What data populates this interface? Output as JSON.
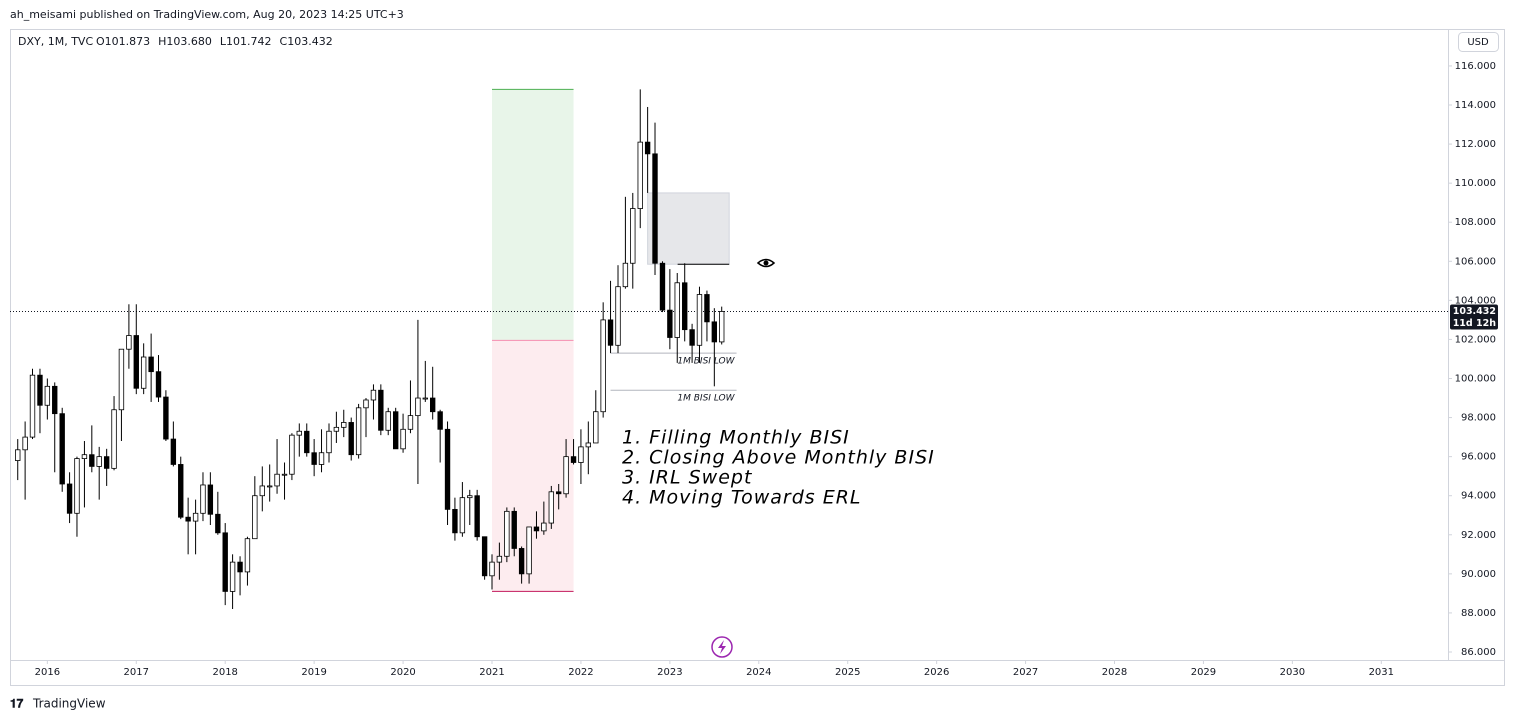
{
  "header": {
    "publisher": "ah_meisami published on TradingView.com, Aug 20, 2023 14:25 UTC+3",
    "footer": "TradingView"
  },
  "chart_data": {
    "type": "candlestick",
    "symbol": "DXY, 1M, TVC",
    "legend_items": [
      "O101.873",
      "H103.680",
      "L101.742",
      "C103.432"
    ],
    "currency": "USD",
    "countdown": "11d 12h",
    "x": [
      2015.667,
      2015.75,
      2015.833,
      2015.917,
      2016,
      2016.083,
      2016.167,
      2016.25,
      2016.333,
      2016.417,
      2016.5,
      2016.583,
      2016.667,
      2016.75,
      2016.833,
      2016.917,
      2017,
      2017.083,
      2017.167,
      2017.25,
      2017.333,
      2017.417,
      2017.5,
      2017.583,
      2017.667,
      2017.75,
      2017.833,
      2017.917,
      2018,
      2018.083,
      2018.167,
      2018.25,
      2018.333,
      2018.417,
      2018.5,
      2018.583,
      2018.667,
      2018.75,
      2018.833,
      2018.917,
      2019,
      2019.083,
      2019.167,
      2019.25,
      2019.333,
      2019.417,
      2019.5,
      2019.583,
      2019.667,
      2019.75,
      2019.833,
      2019.917,
      2020,
      2020.083,
      2020.167,
      2020.25,
      2020.333,
      2020.417,
      2020.5,
      2020.583,
      2020.667,
      2020.75,
      2020.833,
      2020.917,
      2021,
      2021.083,
      2021.167,
      2021.25,
      2021.333,
      2021.417,
      2021.5,
      2021.583,
      2021.667,
      2021.75,
      2021.833,
      2021.917,
      2022,
      2022.083,
      2022.167,
      2022.25,
      2022.333,
      2022.417,
      2022.5,
      2022.583,
      2022.667,
      2022.75,
      2022.833,
      2022.917,
      2023,
      2023.083,
      2023.167,
      2023.25,
      2023.333,
      2023.417,
      2023.5,
      2023.583
    ],
    "open": [
      95.8,
      96.35,
      97.0,
      100.17,
      98.63,
      99.6,
      98.2,
      94.6,
      93.1,
      95.9,
      96.1,
      95.5,
      96.0,
      95.4,
      98.4,
      101.5,
      102.2,
      99.5,
      101.1,
      100.35,
      99.05,
      96.9,
      95.6,
      92.9,
      92.7,
      93.1,
      94.55,
      93.05,
      92.1,
      89.1,
      90.6,
      90.1,
      91.8,
      94.0,
      94.5,
      94.5,
      95.1,
      95.1,
      97.1,
      97.3,
      96.2,
      95.6,
      96.2,
      97.3,
      97.5,
      97.75,
      96.1,
      98.5,
      98.9,
      99.4,
      97.35,
      98.3,
      96.4,
      97.4,
      98.1,
      99.0,
      99.0,
      98.3,
      97.4,
      93.3,
      92.1,
      93.9,
      94.0,
      91.9,
      89.9,
      90.6,
      90.9,
      93.2,
      91.3,
      90.0,
      92.4,
      92.2,
      92.6,
      94.2,
      94.1,
      96.0,
      95.7,
      96.5,
      96.7,
      98.3,
      103.0,
      101.7,
      104.7,
      105.9,
      108.7,
      112.1,
      111.5,
      105.9,
      103.5,
      102.1,
      104.9,
      102.5,
      101.7,
      104.3,
      102.9,
      101.873
    ],
    "high": [
      96.9,
      97.8,
      100.5,
      100.5,
      100.0,
      99.8,
      98.5,
      95.2,
      96.0,
      96.8,
      97.6,
      96.5,
      96.4,
      99.1,
      101.5,
      103.8,
      103.8,
      101.8,
      102.3,
      101.2,
      99.4,
      97.8,
      96.0,
      93.9,
      93.8,
      95.2,
      95.2,
      94.2,
      92.6,
      91.0,
      90.9,
      91.9,
      95.0,
      95.5,
      95.6,
      96.9,
      95.7,
      97.2,
      97.7,
      97.7,
      96.9,
      97.4,
      97.7,
      98.3,
      98.4,
      98.0,
      98.7,
      99.0,
      99.7,
      99.7,
      98.5,
      98.5,
      98.2,
      99.9,
      103.0,
      100.9,
      100.6,
      98.4,
      97.8,
      93.9,
      94.7,
      94.3,
      94.3,
      91.9,
      91.0,
      91.6,
      93.4,
      93.4,
      91.4,
      92.4,
      93.2,
      93.7,
      94.5,
      94.6,
      96.9,
      96.9,
      97.4,
      97.8,
      99.4,
      103.9,
      105.0,
      105.8,
      109.3,
      109.5,
      114.8,
      113.9,
      113.1,
      106.0,
      105.6,
      105.4,
      105.9,
      102.8,
      104.7,
      104.5,
      103.6,
      103.68
    ],
    "low": [
      94.8,
      93.8,
      96.9,
      97.2,
      97.9,
      95.2,
      94.2,
      92.6,
      91.9,
      93.4,
      95.2,
      93.8,
      94.5,
      95.3,
      96.8,
      100.5,
      99.2,
      99.2,
      98.8,
      98.8,
      96.8,
      95.5,
      92.8,
      91.0,
      91.0,
      92.7,
      92.5,
      92.0,
      88.4,
      88.2,
      88.9,
      89.4,
      91.8,
      93.2,
      93.7,
      94.1,
      93.8,
      94.8,
      96.0,
      96.0,
      95.0,
      95.2,
      95.7,
      96.7,
      97.0,
      95.8,
      95.9,
      97.0,
      97.9,
      97.1,
      97.1,
      96.4,
      96.2,
      97.2,
      94.6,
      98.8,
      97.9,
      95.7,
      92.5,
      91.7,
      91.9,
      92.5,
      91.7,
      89.7,
      89.2,
      89.7,
      90.6,
      90.9,
      89.5,
      89.5,
      91.8,
      92.0,
      92.3,
      93.3,
      93.9,
      95.6,
      94.6,
      95.1,
      96.7,
      98.0,
      101.3,
      101.3,
      104.6,
      104.6,
      107.7,
      109.5,
      105.3,
      103.4,
      101.5,
      100.8,
      101.9,
      100.8,
      100.8,
      101.9,
      99.6,
      101.742
    ],
    "close": [
      96.35,
      97.0,
      100.17,
      98.63,
      99.6,
      98.2,
      94.6,
      93.1,
      95.9,
      96.1,
      95.5,
      96.0,
      95.4,
      98.4,
      101.5,
      102.2,
      99.5,
      101.1,
      100.35,
      99.05,
      96.9,
      95.6,
      92.9,
      92.7,
      93.1,
      94.55,
      93.05,
      92.1,
      89.1,
      90.6,
      90.1,
      91.8,
      94.0,
      94.5,
      94.5,
      95.1,
      95.1,
      97.1,
      97.3,
      96.2,
      95.6,
      96.2,
      97.3,
      97.5,
      97.75,
      96.1,
      98.5,
      98.9,
      99.4,
      97.35,
      98.3,
      96.4,
      97.4,
      98.1,
      99.0,
      99.0,
      98.3,
      97.4,
      93.3,
      92.1,
      93.9,
      94.0,
      91.9,
      89.9,
      90.6,
      90.9,
      93.2,
      91.3,
      90.0,
      92.4,
      92.2,
      92.6,
      94.2,
      94.1,
      96.0,
      95.7,
      96.5,
      96.7,
      98.3,
      103.0,
      101.7,
      104.7,
      105.9,
      108.7,
      112.1,
      111.5,
      105.9,
      103.5,
      102.1,
      104.9,
      102.5,
      101.7,
      104.3,
      102.9,
      101.873,
      103.432
    ],
    "up_color": "#ffffff",
    "down_color": "#000000",
    "outline_color": "#000000",
    "xlim": [
      2015.58,
      2031.75
    ],
    "xticks": [
      2016,
      2017,
      2018,
      2019,
      2020,
      2021,
      2022,
      2023,
      2024,
      2025,
      2026,
      2027,
      2028,
      2029,
      2030,
      2031
    ],
    "ylim": [
      85.59,
      117.84
    ],
    "yticks": [
      {
        "value": 86,
        "label": "86.000"
      },
      {
        "value": 88,
        "label": "88.000"
      },
      {
        "value": 90,
        "label": "90.000"
      },
      {
        "value": 92,
        "label": "92.000"
      },
      {
        "value": 94,
        "label": "94.000"
      },
      {
        "value": 96,
        "label": "96.000"
      },
      {
        "value": 98,
        "label": "98.000"
      },
      {
        "value": 100,
        "label": "100.000"
      },
      {
        "value": 102,
        "label": "102.000"
      },
      {
        "value": 104,
        "label": "104.000"
      },
      {
        "value": 106,
        "label": "106.000"
      },
      {
        "value": 108,
        "label": "108.000"
      },
      {
        "value": 110,
        "label": "110.000"
      },
      {
        "value": 112,
        "label": "112.000"
      },
      {
        "value": 114,
        "label": "114.000"
      },
      {
        "value": 116,
        "label": "116.000"
      }
    ],
    "position": {
      "x": [
        2021.0,
        2021.917
      ],
      "entry": 101.95,
      "target": 114.8,
      "stop": 89.1,
      "profit_color": "#e8f5e9",
      "loss_color": "#fdecef"
    },
    "gap_box": {
      "x": [
        2022.75,
        2023.667
      ],
      "y": [
        105.85,
        109.5
      ],
      "color": "#e6e7ea"
    },
    "levels": [
      {
        "label": "1M BISI LOW",
        "value": 101.3,
        "x": [
          2022.333,
          2023.75
        ]
      },
      {
        "label": "1M BISI LOW",
        "value": 99.4,
        "x": [
          2022.333,
          2023.75
        ]
      }
    ],
    "annotations": [
      "1. Filling Monthly BISI",
      "2. Closing Above Monthly BISI",
      "3. IRL Swept",
      "4. Moving Towards ERL"
    ]
  }
}
